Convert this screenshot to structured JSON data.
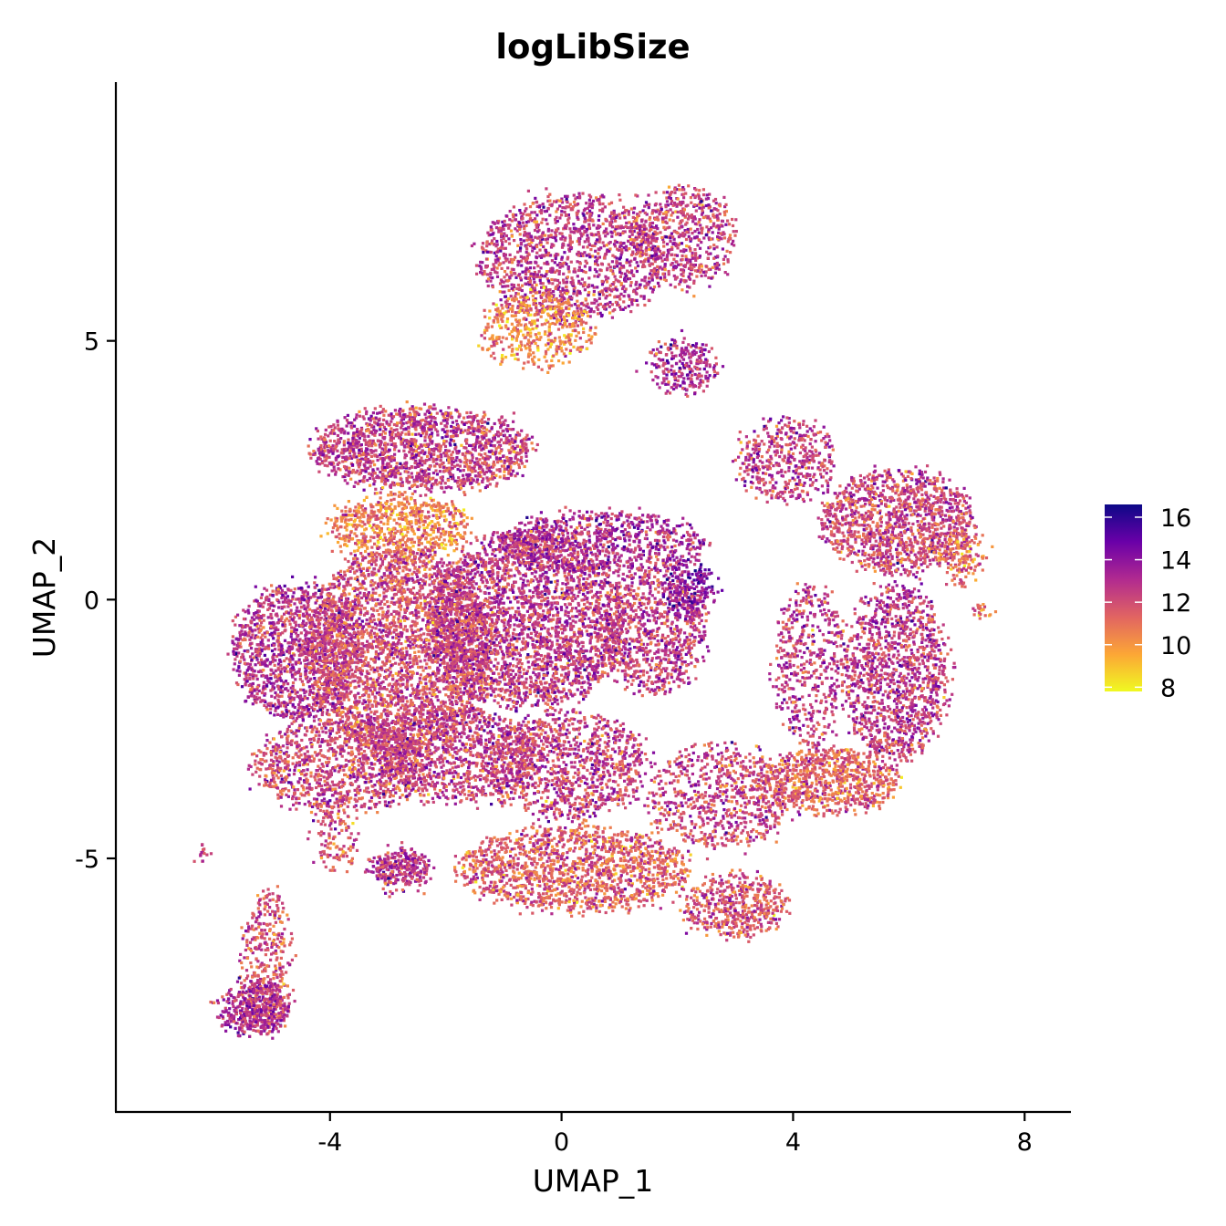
{
  "chart_data": {
    "type": "scatter",
    "title": "logLibSize",
    "xlabel": "UMAP_1",
    "ylabel": "UMAP_2",
    "xlim": [
      -7.7,
      8.8
    ],
    "ylim": [
      -9.9,
      10.0
    ],
    "x_ticks": [
      -4,
      0,
      4,
      8
    ],
    "x_tick_labels": [
      "-4",
      "0",
      "4",
      "8"
    ],
    "y_ticks": [
      -5,
      0,
      5
    ],
    "y_tick_labels": [
      "-5",
      "0",
      "5"
    ],
    "grid": false,
    "legend": {
      "placement": "right",
      "type": "colorbar",
      "range": [
        7.8,
        16.6
      ],
      "ticks": [
        8,
        10,
        12,
        14,
        16
      ],
      "tick_labels": [
        "8",
        "10",
        "12",
        "14",
        "16"
      ],
      "colors": [
        "#f0f921",
        "#fca636",
        "#e16462",
        "#b12a90",
        "#6a00a8",
        "#0d0887"
      ]
    },
    "clusters": [
      {
        "cx": 0.2,
        "cy": 6.6,
        "rx": 1.6,
        "ry": 1.2,
        "n": 1400,
        "mean": 12.6
      },
      {
        "cx": -0.4,
        "cy": 5.2,
        "rx": 1.0,
        "ry": 0.7,
        "n": 450,
        "mean": 10.4
      },
      {
        "cx": 2.1,
        "cy": 7.0,
        "rx": 0.9,
        "ry": 1.0,
        "n": 600,
        "mean": 12.4
      },
      {
        "cx": 2.1,
        "cy": 4.5,
        "rx": 0.6,
        "ry": 0.5,
        "n": 250,
        "mean": 13.2
      },
      {
        "cx": -2.4,
        "cy": 2.9,
        "rx": 1.9,
        "ry": 0.8,
        "n": 1600,
        "mean": 12.4
      },
      {
        "cx": -2.8,
        "cy": 1.4,
        "rx": 1.2,
        "ry": 0.6,
        "n": 700,
        "mean": 10.6
      },
      {
        "cx": -4.6,
        "cy": -1.0,
        "rx": 1.1,
        "ry": 1.3,
        "n": 1300,
        "mean": 12.8
      },
      {
        "cx": -2.8,
        "cy": -1.0,
        "rx": 1.6,
        "ry": 2.0,
        "n": 3200,
        "mean": 12.0
      },
      {
        "cx": -0.6,
        "cy": -0.4,
        "rx": 1.7,
        "ry": 1.7,
        "n": 2800,
        "mean": 12.5
      },
      {
        "cx": 0.7,
        "cy": 1.1,
        "rx": 1.8,
        "ry": 0.6,
        "n": 900,
        "mean": 13.0
      },
      {
        "cx": 1.6,
        "cy": -0.6,
        "rx": 0.9,
        "ry": 1.2,
        "n": 900,
        "mean": 12.6
      },
      {
        "cx": 2.2,
        "cy": 0.2,
        "rx": 0.4,
        "ry": 0.5,
        "n": 200,
        "mean": 14.0
      },
      {
        "cx": -3.8,
        "cy": -3.2,
        "rx": 1.5,
        "ry": 0.9,
        "n": 1100,
        "mean": 12.2
      },
      {
        "cx": -1.8,
        "cy": -3.0,
        "rx": 1.4,
        "ry": 0.9,
        "n": 1000,
        "mean": 12.4
      },
      {
        "cx": 0.1,
        "cy": -3.2,
        "rx": 1.4,
        "ry": 1.0,
        "n": 1100,
        "mean": 12.3
      },
      {
        "cx": 0.2,
        "cy": -5.2,
        "rx": 2.0,
        "ry": 0.8,
        "n": 1500,
        "mean": 11.4
      },
      {
        "cx": 3.0,
        "cy": -5.9,
        "rx": 0.9,
        "ry": 0.6,
        "n": 500,
        "mean": 11.8
      },
      {
        "cx": 2.7,
        "cy": -3.8,
        "rx": 1.2,
        "ry": 1.0,
        "n": 700,
        "mean": 12.2
      },
      {
        "cx": 3.9,
        "cy": 2.7,
        "rx": 0.8,
        "ry": 0.8,
        "n": 450,
        "mean": 12.4
      },
      {
        "cx": 5.8,
        "cy": 1.5,
        "rx": 1.3,
        "ry": 1.0,
        "n": 1300,
        "mean": 12.2
      },
      {
        "cx": 5.8,
        "cy": -1.4,
        "rx": 0.9,
        "ry": 1.7,
        "n": 1300,
        "mean": 12.6
      },
      {
        "cx": 4.3,
        "cy": -1.3,
        "rx": 0.6,
        "ry": 1.6,
        "n": 500,
        "mean": 12.6
      },
      {
        "cx": 4.6,
        "cy": -3.5,
        "rx": 1.2,
        "ry": 0.6,
        "n": 800,
        "mean": 11.4
      },
      {
        "cx": 6.9,
        "cy": 0.8,
        "rx": 0.4,
        "ry": 0.5,
        "n": 150,
        "mean": 11.2
      },
      {
        "cx": -2.8,
        "cy": -5.2,
        "rx": 0.5,
        "ry": 0.35,
        "n": 300,
        "mean": 12.8
      },
      {
        "cx": -5.1,
        "cy": -7.0,
        "rx": 0.4,
        "ry": 1.4,
        "n": 350,
        "mean": 11.8
      },
      {
        "cx": -5.3,
        "cy": -7.9,
        "rx": 0.6,
        "ry": 0.5,
        "n": 450,
        "mean": 13.0
      },
      {
        "cx": -3.9,
        "cy": -4.6,
        "rx": 0.35,
        "ry": 0.6,
        "n": 120,
        "mean": 11.8
      },
      {
        "cx": 7.3,
        "cy": -0.2,
        "rx": 0.15,
        "ry": 0.06,
        "n": 20,
        "mean": 11.0
      },
      {
        "cx": -6.2,
        "cy": -4.9,
        "rx": 0.12,
        "ry": 0.06,
        "n": 15,
        "mean": 12.8
      }
    ]
  }
}
